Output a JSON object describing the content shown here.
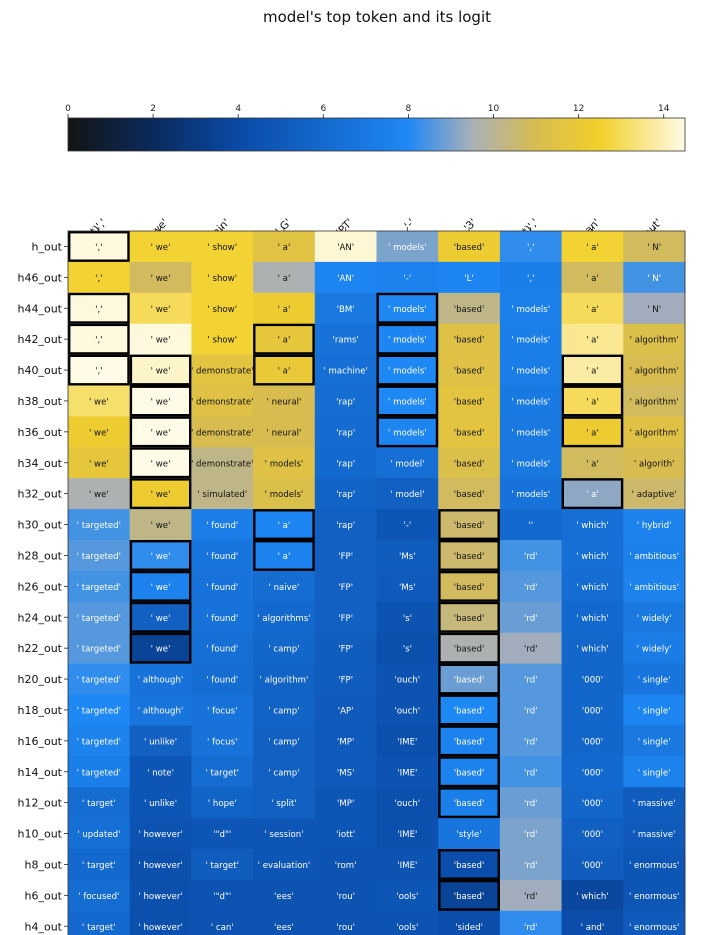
{
  "chart_data": {
    "type": "heatmap",
    "title": "model's top token and its logit",
    "colorbar": {
      "min": 0,
      "max": 14.5,
      "ticks": [
        0,
        2,
        4,
        6,
        8,
        10,
        12,
        14
      ],
      "stops": [
        "#141414",
        "#0a2a5c",
        "#0a4aa6",
        "#1e88f5",
        "#aab0b8",
        "#d8bc50",
        "#f2d02a",
        "#fffbe6"
      ],
      "stop_values": [
        0,
        2,
        4,
        8,
        9.5,
        11,
        12.5,
        14.5
      ]
    },
    "columns": [
      "(*)','",
      "(*)' we'",
      "' train'",
      "' G'",
      "'PT'",
      "'-'",
      "'3'",
      "(*)','",
      "' an'",
      "' aut'"
    ],
    "rows": [
      {
        "label": "h_out",
        "tokens": [
          "','",
          "' we'",
          "' show'",
          "' a'",
          "'AN'",
          "' models'",
          "'based'",
          "','",
          "' a'",
          "' N'"
        ],
        "values": [
          14.4,
          12.6,
          12.6,
          11.5,
          14.3,
          9.0,
          12.2,
          8.2,
          12.6,
          10.8
        ],
        "outlined": [
          true,
          false,
          false,
          false,
          false,
          false,
          false,
          false,
          false,
          false
        ]
      },
      {
        "label": "h46_out",
        "tokens": [
          "','",
          "' we'",
          "' show'",
          "' a'",
          "'AN'",
          "'-'",
          "'L'",
          "','",
          "' a'",
          "' N'"
        ],
        "values": [
          12.6,
          10.8,
          12.6,
          9.6,
          7.8,
          7.6,
          7.8,
          7.4,
          10.8,
          8.4
        ],
        "outlined": [
          false,
          false,
          false,
          false,
          false,
          false,
          false,
          false,
          false,
          false
        ]
      },
      {
        "label": "h44_out",
        "tokens": [
          "','",
          "' we'",
          "' show'",
          "' a'",
          "'BM'",
          "' models'",
          "'based'",
          "' models'",
          "' a'",
          "' N'"
        ],
        "values": [
          14.4,
          13.0,
          12.6,
          12.2,
          7.0,
          8.0,
          10.2,
          7.5,
          13.0,
          9.4
        ],
        "outlined": [
          true,
          false,
          false,
          false,
          false,
          true,
          false,
          false,
          false,
          false
        ]
      },
      {
        "label": "h42_out",
        "tokens": [
          "','",
          "' we'",
          "' show'",
          "' a'",
          "'rams'",
          "' models'",
          "'based'",
          "' models'",
          "' a'",
          "' algorithm'"
        ],
        "values": [
          14.4,
          14.4,
          12.6,
          11.8,
          6.6,
          7.9,
          11.4,
          7.4,
          13.6,
          11.2
        ],
        "outlined": [
          true,
          false,
          false,
          true,
          false,
          true,
          false,
          false,
          false,
          false
        ]
      },
      {
        "label": "h40_out",
        "tokens": [
          "','",
          "' we'",
          "' demonstrate'",
          "' a'",
          "' machine'",
          "' models'",
          "'based'",
          "' models'",
          "' a'",
          "' algorithm'"
        ],
        "values": [
          14.5,
          14.2,
          11.6,
          12.0,
          6.4,
          8.0,
          11.4,
          7.3,
          13.8,
          11.0
        ],
        "outlined": [
          true,
          true,
          false,
          true,
          false,
          true,
          false,
          false,
          true,
          false
        ]
      },
      {
        "label": "h38_out",
        "tokens": [
          "' we'",
          "' we'",
          "' demonstrate'",
          "' neural'",
          "'rap'",
          "' models'",
          "'based'",
          "' models'",
          "' a'",
          "' algorithm'"
        ],
        "values": [
          13.2,
          14.5,
          11.4,
          11.0,
          6.2,
          8.0,
          11.6,
          7.1,
          13.0,
          10.8
        ],
        "outlined": [
          false,
          true,
          false,
          false,
          false,
          true,
          false,
          false,
          true,
          false
        ]
      },
      {
        "label": "h36_out",
        "tokens": [
          "' we'",
          "' we'",
          "' demonstrate'",
          "' neural'",
          "'rap'",
          "' models'",
          "'based'",
          "' models'",
          "' a'",
          "' algorithm'"
        ],
        "values": [
          12.2,
          14.5,
          11.0,
          11.0,
          6.1,
          7.8,
          11.6,
          7.0,
          12.2,
          11.4
        ],
        "outlined": [
          false,
          true,
          false,
          false,
          false,
          true,
          false,
          false,
          true,
          false
        ]
      },
      {
        "label": "h34_out",
        "tokens": [
          "' we'",
          "' we'",
          "' demonstrate'",
          "' models'",
          "'rap'",
          "' model'",
          "'based'",
          "' models'",
          "' a'",
          "' algorith'"
        ],
        "values": [
          11.8,
          14.5,
          10.2,
          11.4,
          6.0,
          6.4,
          11.2,
          7.0,
          10.8,
          11.0
        ],
        "outlined": [
          false,
          true,
          false,
          false,
          false,
          false,
          false,
          false,
          false,
          false
        ]
      },
      {
        "label": "h32_out",
        "tokens": [
          "' we'",
          "' we'",
          "' simulated'",
          "' models'",
          "'rap'",
          "' model'",
          "'based'",
          "' models'",
          "' a'",
          "' adaptive'"
        ],
        "values": [
          9.6,
          12.2,
          10.2,
          11.2,
          5.6,
          5.4,
          10.8,
          6.6,
          9.2,
          10.6
        ],
        "outlined": [
          false,
          true,
          false,
          false,
          false,
          false,
          false,
          false,
          true,
          false
        ]
      },
      {
        "label": "h30_out",
        "tokens": [
          "' targeted'",
          "' we'",
          "' found'",
          "' a'",
          "'rap'",
          "'-'",
          "'based'",
          "''",
          "' which'",
          "' hybrid'"
        ],
        "values": [
          8.4,
          10.2,
          7.3,
          7.8,
          5.4,
          4.8,
          10.6,
          6.0,
          6.4,
          7.6
        ],
        "outlined": [
          false,
          false,
          false,
          true,
          false,
          false,
          true,
          false,
          false,
          false
        ]
      },
      {
        "label": "h28_out",
        "tokens": [
          "' targeted'",
          "' we'",
          "' found'",
          "' a'",
          "'FP'",
          "'Ms'",
          "'based'",
          "'rd'",
          "' which'",
          "' ambitious'"
        ],
        "values": [
          8.6,
          8.2,
          6.8,
          7.6,
          5.4,
          5.2,
          10.6,
          8.4,
          6.4,
          7.5
        ],
        "outlined": [
          false,
          true,
          false,
          true,
          false,
          false,
          true,
          false,
          false,
          false
        ]
      },
      {
        "label": "h26_out",
        "tokens": [
          "' targeted'",
          "' we'",
          "' found'",
          "' naive'",
          "'FP'",
          "'Ms'",
          "'based'",
          "'rd'",
          "' which'",
          "' ambitious'"
        ],
        "values": [
          8.4,
          7.6,
          6.6,
          6.2,
          5.4,
          5.0,
          10.8,
          8.6,
          6.2,
          7.6
        ],
        "outlined": [
          false,
          true,
          false,
          false,
          false,
          false,
          true,
          false,
          false,
          false
        ]
      },
      {
        "label": "h24_out",
        "tokens": [
          "' targeted'",
          "' we'",
          "' found'",
          "' algorithms'",
          "'FP'",
          "'s'",
          "'based'",
          "'rd'",
          "' which'",
          "' widely'"
        ],
        "values": [
          8.6,
          5.4,
          6.6,
          6.0,
          5.4,
          4.6,
          10.4,
          8.8,
          6.0,
          7.0
        ],
        "outlined": [
          false,
          true,
          false,
          false,
          false,
          false,
          true,
          false,
          false,
          false
        ]
      },
      {
        "label": "h22_out",
        "tokens": [
          "' targeted'",
          "' we'",
          "' found'",
          "' camp'",
          "'FP'",
          "'s'",
          "'based'",
          "'rd'",
          "' which'",
          "' widely'"
        ],
        "values": [
          8.6,
          3.6,
          6.4,
          5.8,
          5.2,
          4.4,
          9.6,
          9.4,
          5.8,
          7.2
        ],
        "outlined": [
          false,
          true,
          false,
          false,
          false,
          false,
          true,
          false,
          false,
          false
        ]
      },
      {
        "label": "h20_out",
        "tokens": [
          "' targeted'",
          "' although'",
          "' found'",
          "' algorithm'",
          "'FP'",
          "'ouch'",
          "'based'",
          "'rd'",
          "'000'",
          "' single'"
        ],
        "values": [
          8.2,
          6.6,
          6.2,
          5.6,
          5.2,
          4.6,
          8.8,
          8.6,
          5.8,
          6.8
        ],
        "outlined": [
          false,
          false,
          false,
          false,
          false,
          false,
          true,
          false,
          false,
          false
        ]
      },
      {
        "label": "h18_out",
        "tokens": [
          "' targeted'",
          "' although'",
          "' focus'",
          "' camp'",
          "'AP'",
          "'ouch'",
          "'based'",
          "'rd'",
          "'000'",
          "' single'"
        ],
        "values": [
          8.0,
          6.8,
          6.6,
          5.6,
          5.0,
          4.6,
          8.0,
          8.6,
          5.8,
          7.8
        ],
        "outlined": [
          false,
          false,
          false,
          false,
          false,
          false,
          true,
          false,
          false,
          false
        ]
      },
      {
        "label": "h16_out",
        "tokens": [
          "' targeted'",
          "' unlike'",
          "' focus'",
          "' camp'",
          "'MP'",
          "'IME'",
          "'based'",
          "'rd'",
          "'000'",
          "' single'"
        ],
        "values": [
          7.6,
          5.4,
          6.6,
          5.4,
          5.0,
          4.4,
          7.6,
          8.6,
          5.8,
          7.0
        ],
        "outlined": [
          false,
          false,
          false,
          false,
          false,
          false,
          true,
          false,
          false,
          false
        ]
      },
      {
        "label": "h14_out",
        "tokens": [
          "' targeted'",
          "' note'",
          "' target'",
          "' camp'",
          "'MS'",
          "'IME'",
          "'based'",
          "'rd'",
          "'000'",
          "' single'"
        ],
        "values": [
          7.4,
          4.8,
          6.2,
          5.4,
          5.0,
          4.6,
          7.6,
          8.4,
          6.0,
          7.6
        ],
        "outlined": [
          false,
          false,
          false,
          false,
          false,
          false,
          true,
          false,
          false,
          false
        ]
      },
      {
        "label": "h12_out",
        "tokens": [
          "' target'",
          "' unlike'",
          "' hope'",
          "' split'",
          "'MP'",
          "'ouch'",
          "'based'",
          "'rd'",
          "'000'",
          "' massive'"
        ],
        "values": [
          6.2,
          4.8,
          5.6,
          5.4,
          4.8,
          4.4,
          7.4,
          8.8,
          5.8,
          5.2
        ],
        "outlined": [
          false,
          false,
          false,
          false,
          false,
          false,
          true,
          false,
          false,
          false
        ]
      },
      {
        "label": "h10_out",
        "tokens": [
          "' updated'",
          "' however'",
          "'\"d\"'",
          "' session'",
          "'iott'",
          "'IME'",
          "'style'",
          "'rd'",
          "'000'",
          "' massive'"
        ],
        "values": [
          6.4,
          4.6,
          4.8,
          4.8,
          4.8,
          4.4,
          6.8,
          9.0,
          5.4,
          5.0
        ],
        "outlined": [
          false,
          false,
          false,
          false,
          false,
          false,
          false,
          false,
          false,
          false
        ]
      },
      {
        "label": "h8_out",
        "tokens": [
          "' target'",
          "' however'",
          "' target'",
          "' evaluation'",
          "'rom'",
          "'IME'",
          "'based'",
          "'rd'",
          "'000'",
          "' enormous'"
        ],
        "values": [
          6.0,
          4.4,
          5.2,
          4.8,
          4.6,
          4.6,
          4.2,
          9.0,
          5.2,
          4.8
        ],
        "outlined": [
          false,
          false,
          false,
          false,
          false,
          false,
          true,
          false,
          false,
          false
        ]
      },
      {
        "label": "h6_out",
        "tokens": [
          "' focused'",
          "' however'",
          "'\"d\"'",
          "'ees'",
          "'rou'",
          "'ools'",
          "'based'",
          "'rd'",
          "' which'",
          "' enormous'"
        ],
        "values": [
          6.2,
          4.4,
          4.6,
          4.6,
          4.6,
          4.8,
          3.6,
          9.4,
          3.8,
          4.8
        ],
        "outlined": [
          false,
          false,
          false,
          false,
          false,
          false,
          true,
          false,
          false,
          false
        ]
      },
      {
        "label": "h4_out",
        "tokens": [
          "' target'",
          "' however'",
          "' can'",
          "'ees'",
          "'rou'",
          "'ools'",
          "'sided'",
          "'rd'",
          "' and'",
          "' enormous'"
        ],
        "values": [
          6.0,
          4.4,
          4.6,
          4.6,
          4.6,
          4.6,
          4.2,
          8.2,
          4.2,
          5.0
        ],
        "outlined": [
          false,
          false,
          false,
          false,
          false,
          false,
          false,
          false,
          false,
          false
        ]
      }
    ]
  }
}
